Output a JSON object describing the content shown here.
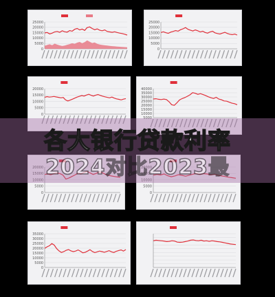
{
  "headline": {
    "line1": "各大银行贷款利率",
    "line2": "2024对比2023最"
  },
  "colors": {
    "background": "#000000",
    "panel": "#f2f2f4",
    "series": "#e0303a",
    "area_fill": "#e87a86",
    "banner": "#a56ea5"
  },
  "chart_data": [
    {
      "type": "line",
      "title": "",
      "xlabel": "",
      "ylabel": "",
      "legend": [
        "",
        ""
      ],
      "legend_position": "top",
      "y_ticks": [
        "25000",
        "20000",
        "15000",
        "10000",
        "5000",
        "0"
      ],
      "ylim": [
        0,
        25000
      ],
      "grid": true,
      "series": [
        {
          "values": [
            14800,
            15200,
            13900,
            14600,
            15800,
            16200,
            15400,
            16800,
            15900,
            15600,
            17000,
            16400,
            18200,
            19000,
            17600,
            18400,
            17200,
            19800,
            20400,
            18900,
            17800,
            18600,
            17400,
            16800,
            17600,
            16200,
            15800,
            15400,
            15900,
            15200,
            14600,
            14200,
            13600,
            12800
          ]
        },
        {
          "type": "area",
          "values": [
            2800,
            3600,
            4200,
            3400,
            4800,
            3900,
            3200,
            2600,
            3000,
            3800,
            4400,
            5200,
            4600,
            5800,
            6400,
            5200,
            6200,
            7800,
            6600,
            5400,
            5900,
            4600,
            4000,
            3600,
            3300,
            3000,
            2700,
            2500,
            2300,
            2100,
            1900,
            1800,
            1600,
            1500
          ]
        }
      ]
    },
    {
      "type": "line",
      "title": "",
      "xlabel": "",
      "ylabel": "",
      "legend": [
        ""
      ],
      "legend_position": "top",
      "y_ticks": [
        "25000",
        "20000",
        "15000",
        "10000",
        "5000",
        "0"
      ],
      "ylim": [
        0,
        25000
      ],
      "grid": true,
      "series": [
        {
          "values": [
            15200,
            15900,
            15000,
            14400,
            15600,
            16200,
            17000,
            16400,
            17800,
            18600,
            19800,
            18200,
            17400,
            16600,
            17600,
            16800,
            15800,
            16400,
            15200,
            14600,
            15800,
            16400,
            14900,
            14200,
            13800,
            14600,
            15400,
            14300,
            13600,
            13200,
            13800,
            12800
          ]
        }
      ]
    },
    {
      "type": "line",
      "title": "",
      "xlabel": "",
      "ylabel": "",
      "legend": [
        ""
      ],
      "legend_position": "top",
      "y_ticks": [
        "20000",
        "15000",
        "10000",
        "5000",
        "0"
      ],
      "ylim": [
        0,
        20000
      ],
      "grid": true,
      "series": [
        {
          "values": [
            13200,
            13800,
            13400,
            13600,
            13900,
            13500,
            13200,
            12800,
            13100,
            11200,
            10400,
            11000,
            11800,
            12600,
            13400,
            14000,
            14600,
            14200,
            15000,
            15600,
            14800,
            14200,
            14900,
            15400,
            14700,
            14100,
            13600,
            13200,
            12800,
            13400,
            12600,
            12000,
            11600,
            11200,
            11800,
            12200
          ]
        }
      ]
    },
    {
      "type": "line",
      "title": "",
      "xlabel": "",
      "ylabel": "",
      "legend": [
        ""
      ],
      "legend_position": "top",
      "y_ticks": [
        "40000",
        "35000",
        "30000",
        "25000",
        "20000",
        "15000",
        "10000",
        "5000"
      ],
      "ylim": [
        5000,
        40000
      ],
      "grid": true,
      "series": [
        {
          "values": [
            27500,
            27800,
            27200,
            26800,
            27400,
            26800,
            24200,
            20600,
            19800,
            22800,
            26400,
            28000,
            29200,
            30800,
            32600,
            35200,
            34400,
            33200,
            34000,
            32800,
            31600,
            30200,
            29000,
            28200,
            29600,
            27400,
            26600,
            25200,
            24800,
            23600,
            22400,
            21800,
            20600
          ]
        }
      ]
    },
    {
      "type": "line",
      "title": "",
      "xlabel": "",
      "ylabel": "",
      "legend": [
        ""
      ],
      "legend_position": "top",
      "y_ticks": [
        "20000",
        "15000",
        "10000",
        "5000",
        "0"
      ],
      "ylim": [
        0,
        20000
      ],
      "grid": true,
      "series": [
        {
          "values": [
            14200,
            14600,
            14000,
            14800,
            15400,
            14900,
            13800,
            10600,
            11400,
            12600,
            13800,
            15200,
            14600,
            15800,
            16600,
            15400,
            14200,
            15000,
            16200,
            15600,
            14400,
            13600,
            13000,
            12600,
            12200,
            12000
          ]
        }
      ]
    },
    {
      "type": "line",
      "title": "",
      "xlabel": "",
      "ylabel": "",
      "legend": [
        ""
      ],
      "legend_position": "top",
      "y_ticks": [
        "20000",
        "15000",
        "10000",
        "5000",
        "0"
      ],
      "ylim": [
        0,
        20000
      ],
      "grid": true,
      "series": [
        {
          "values": [
            13600,
            14200,
            13800,
            14600,
            13200,
            12400,
            13000,
            14000,
            13500,
            12800,
            13600,
            14400,
            15000,
            14200,
            14800,
            14600,
            13800,
            14400,
            13600,
            13000,
            12600,
            12000,
            11600,
            11200
          ]
        }
      ]
    },
    {
      "type": "line",
      "title": "",
      "xlabel": "",
      "ylabel": "",
      "legend": [
        ""
      ],
      "legend_position": "top",
      "y_ticks": [
        "35000",
        "30000",
        "25000",
        "20000",
        "15000",
        "10000",
        "5000",
        "0"
      ],
      "ylim": [
        0,
        35000
      ],
      "grid": true,
      "series": [
        {
          "values": [
            19800,
            21400,
            22600,
            24800,
            23200,
            19600,
            17200,
            15600,
            16400,
            17800,
            18600,
            17200,
            16400,
            17000,
            18200,
            16800,
            15200,
            15800,
            17000,
            18400,
            16600,
            15400,
            16200,
            17000,
            16400,
            15800,
            16600,
            17400,
            16200,
            15600,
            16800,
            17600,
            18200,
            17000,
            18600
          ]
        }
      ]
    },
    {
      "type": "line",
      "title": "",
      "xlabel": "",
      "ylabel": "",
      "legend": [
        ""
      ],
      "legend_position": "top",
      "y_ticks": [
        "",
        "",
        "",
        "",
        "",
        "",
        "",
        "",
        "",
        ""
      ],
      "ylim": [
        0,
        25000
      ],
      "grid": true,
      "series": [
        {
          "values": [
            19800,
            20200,
            20000,
            19800,
            19600,
            19200,
            19400,
            19800,
            19600,
            18800,
            18600,
            18800,
            19200,
            19600,
            20200,
            20400,
            20000,
            19800,
            20200,
            19600,
            19800,
            19400,
            19800,
            19600,
            19200,
            19000,
            18600,
            18200,
            17800,
            17400,
            17200,
            17000
          ]
        }
      ]
    }
  ]
}
